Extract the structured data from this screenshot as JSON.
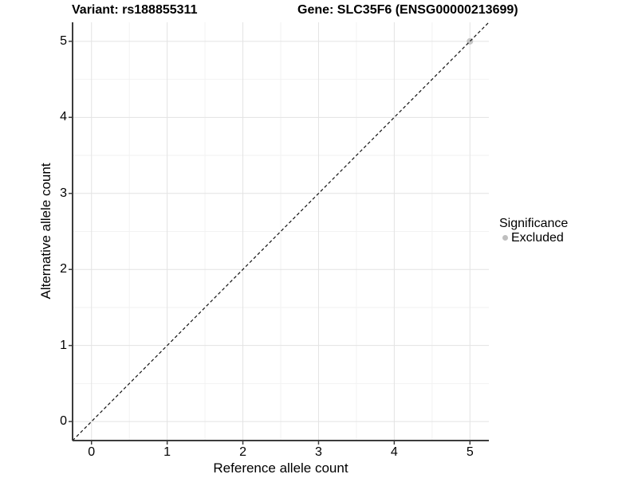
{
  "chart_data": {
    "type": "scatter",
    "title_left": "Variant: rs188855311",
    "title_right": "Gene: SLC35F6 (ENSG00000213699)",
    "xlabel": "Reference allele count",
    "ylabel": "Alternative allele count",
    "xlim": [
      -0.25,
      5.25
    ],
    "ylim": [
      -0.25,
      5.25
    ],
    "xticks": [
      0,
      1,
      2,
      3,
      4,
      5
    ],
    "yticks": [
      0,
      1,
      2,
      3,
      4,
      5
    ],
    "minor_ticks": [
      0.5,
      1.5,
      2.5,
      3.5,
      4.5
    ],
    "grid": {
      "major_color": "#e3e3e3",
      "minor_color": "#f2f2f2",
      "background": "#ffffff"
    },
    "axis_color": "#3c3c3c",
    "identity_line": {
      "style": "dashed",
      "color": "#111111",
      "from": [
        -0.25,
        -0.25
      ],
      "to": [
        5.25,
        5.25
      ]
    },
    "series": [
      {
        "name": "Excluded",
        "color": "#bfbfbf",
        "points": [
          {
            "x": 5,
            "y": 5
          }
        ]
      }
    ],
    "legend": {
      "title": "Significance",
      "position": "right",
      "items": [
        {
          "label": "Excluded",
          "color": "#bfbfbf"
        }
      ]
    }
  }
}
